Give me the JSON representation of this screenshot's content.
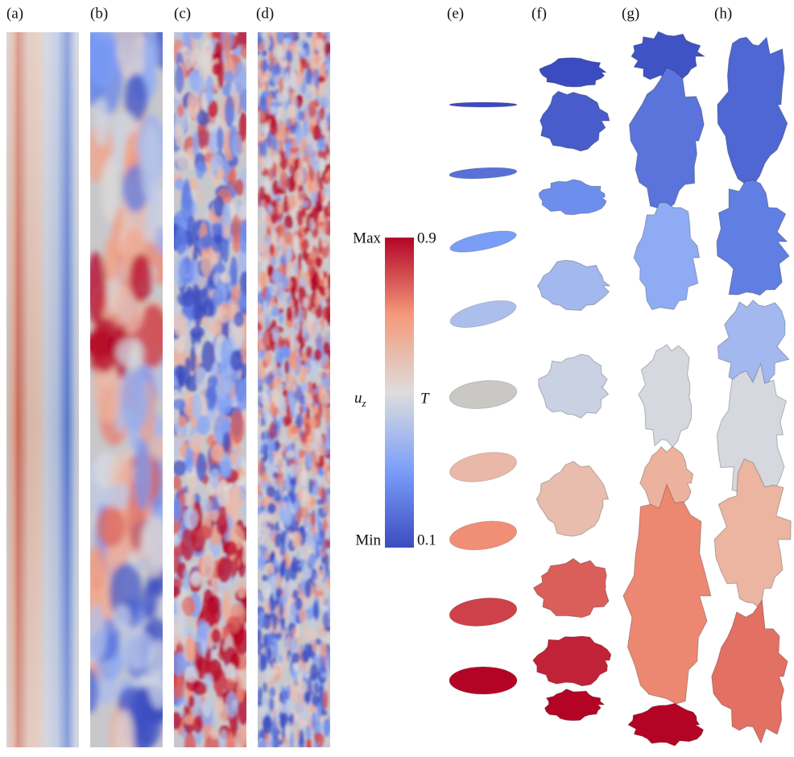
{
  "panels": [
    "(a)",
    "(b)",
    "(c)",
    "(d)",
    "(e)",
    "(f)",
    "(g)",
    "(h)"
  ],
  "colorbar": {
    "left_max": "Max",
    "left_min": "Min",
    "left_symbol": "u",
    "left_subscript": "z",
    "right_symbol": "T",
    "right_max": 0.9,
    "right_min": 0.1
  }
}
